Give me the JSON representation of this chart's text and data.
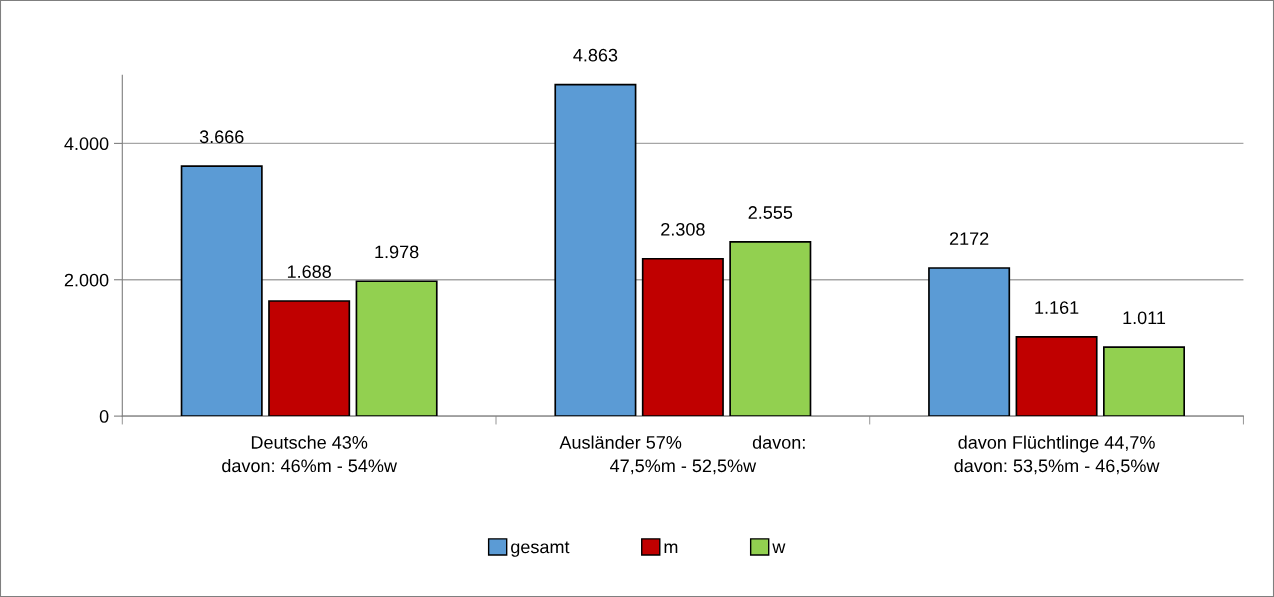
{
  "chart_data": {
    "type": "bar",
    "categories": [
      "Deutsche 43%\ndavon: 46%m - 54%w",
      "Ausländer 57%              davon:\n47,5%m - 52,5%w",
      "davon Flüchtlinge 44,7%\ndavon: 53,5%m - 46,5%w"
    ],
    "series": [
      {
        "name": "gesamt",
        "color": "#5b9bd5",
        "values": [
          3666,
          4863,
          2172
        ],
        "value_labels": [
          "3.666",
          "4.863",
          "2172"
        ]
      },
      {
        "name": "m",
        "color": "#c00000",
        "values": [
          1688,
          2308,
          1161
        ],
        "value_labels": [
          "1.688",
          "2.308",
          "1.161"
        ]
      },
      {
        "name": "w",
        "color": "#92d050",
        "values": [
          1978,
          2555,
          1011
        ],
        "value_labels": [
          "1.978",
          "2.555",
          "1.011"
        ]
      }
    ],
    "ylim": [
      0,
      5000
    ],
    "yticks": [
      {
        "value": 0,
        "label": "0"
      },
      {
        "value": 2000,
        "label": "2.000"
      },
      {
        "value": 4000,
        "label": "4.000"
      }
    ],
    "grid": "y",
    "legend": "bottom"
  }
}
